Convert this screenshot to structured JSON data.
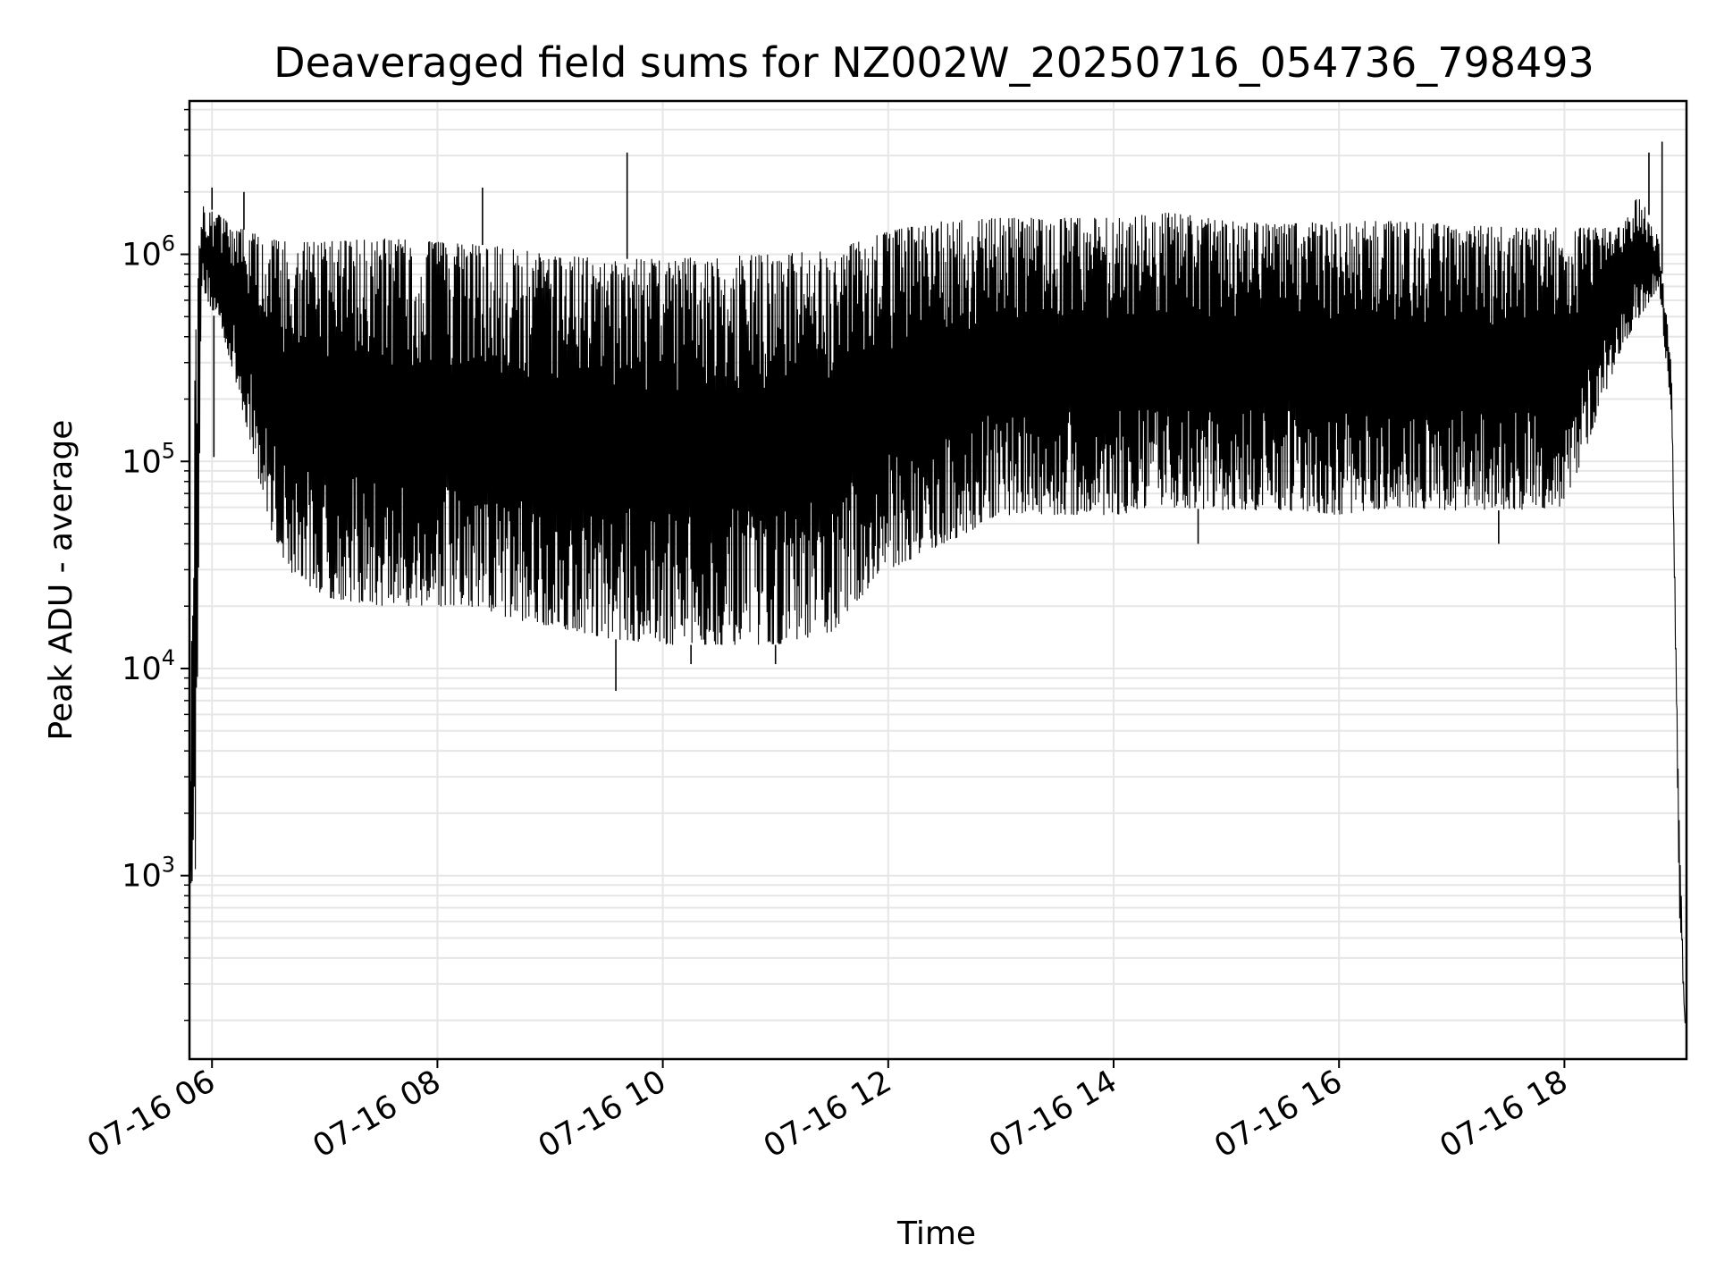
{
  "chart_data": {
    "type": "line",
    "title": "Deaveraged field sums for NZ002W_20250716_054736_798493",
    "xlabel": "Time",
    "ylabel": "Peak ADU - average",
    "y_scale": "log",
    "grid": true,
    "line_color": "#000000",
    "grid_color": "#e6e6e6",
    "xlim": [
      "2025-07-16 05:48",
      "2025-07-16 19:05"
    ],
    "ylim": [
      130,
      5500000
    ],
    "x_ticks": [
      {
        "t": "2025-07-16 06:00",
        "label": "07-16 06"
      },
      {
        "t": "2025-07-16 08:00",
        "label": "07-16 08"
      },
      {
        "t": "2025-07-16 10:00",
        "label": "07-16 10"
      },
      {
        "t": "2025-07-16 12:00",
        "label": "07-16 12"
      },
      {
        "t": "2025-07-16 14:00",
        "label": "07-16 14"
      },
      {
        "t": "2025-07-16 16:00",
        "label": "07-16 16"
      },
      {
        "t": "2025-07-16 18:00",
        "label": "07-16 18"
      }
    ],
    "y_ticks": [
      {
        "value": 1000,
        "base": "10",
        "exp": "3"
      },
      {
        "value": 10000,
        "base": "10",
        "exp": "4"
      },
      {
        "value": 100000,
        "base": "10",
        "exp": "5"
      },
      {
        "value": 1000000,
        "base": "10",
        "exp": "6"
      }
    ],
    "envelope": [
      {
        "t": "2025-07-16 05:48",
        "upper": 1700,
        "lower": 900
      },
      {
        "t": "2025-07-16 05:51",
        "upper": 400000,
        "lower": 1000
      },
      {
        "t": "2025-07-16 05:54",
        "upper": 1800000,
        "lower": 700000
      },
      {
        "t": "2025-07-16 06:06",
        "upper": 1500000,
        "lower": 400000
      },
      {
        "t": "2025-07-16 06:18",
        "upper": 1300000,
        "lower": 150000
      },
      {
        "t": "2025-07-16 06:30",
        "upper": 1200000,
        "lower": 50000
      },
      {
        "t": "2025-07-16 06:40",
        "upper": 1150000,
        "lower": 30000
      },
      {
        "t": "2025-07-16 07:00",
        "upper": 1150000,
        "lower": 22000
      },
      {
        "t": "2025-07-16 07:30",
        "upper": 1200000,
        "lower": 20000
      },
      {
        "t": "2025-07-16 08:00",
        "upper": 1150000,
        "lower": 20000
      },
      {
        "t": "2025-07-16 08:30",
        "upper": 1100000,
        "lower": 18000
      },
      {
        "t": "2025-07-16 09:00",
        "upper": 1000000,
        "lower": 16000
      },
      {
        "t": "2025-07-16 09:30",
        "upper": 950000,
        "lower": 14000
      },
      {
        "t": "2025-07-16 10:00",
        "upper": 950000,
        "lower": 13000
      },
      {
        "t": "2025-07-16 10:30",
        "upper": 980000,
        "lower": 13000
      },
      {
        "t": "2025-07-16 11:00",
        "upper": 1000000,
        "lower": 13000
      },
      {
        "t": "2025-07-16 11:30",
        "upper": 1050000,
        "lower": 15000
      },
      {
        "t": "2025-07-16 11:50",
        "upper": 1200000,
        "lower": 25000
      },
      {
        "t": "2025-07-16 12:00",
        "upper": 1300000,
        "lower": 30000
      },
      {
        "t": "2025-07-16 12:30",
        "upper": 1450000,
        "lower": 40000
      },
      {
        "t": "2025-07-16 13:00",
        "upper": 1500000,
        "lower": 55000
      },
      {
        "t": "2025-07-16 13:30",
        "upper": 1500000,
        "lower": 55000
      },
      {
        "t": "2025-07-16 14:00",
        "upper": 1500000,
        "lower": 55000
      },
      {
        "t": "2025-07-16 14:30",
        "upper": 1600000,
        "lower": 60000
      },
      {
        "t": "2025-07-16 15:00",
        "upper": 1450000,
        "lower": 58000
      },
      {
        "t": "2025-07-16 15:30",
        "upper": 1400000,
        "lower": 58000
      },
      {
        "t": "2025-07-16 16:00",
        "upper": 1450000,
        "lower": 55000
      },
      {
        "t": "2025-07-16 16:30",
        "upper": 1450000,
        "lower": 60000
      },
      {
        "t": "2025-07-16 17:00",
        "upper": 1400000,
        "lower": 58000
      },
      {
        "t": "2025-07-16 17:30",
        "upper": 1350000,
        "lower": 58000
      },
      {
        "t": "2025-07-16 18:00",
        "upper": 1350000,
        "lower": 60000
      },
      {
        "t": "2025-07-16 18:30",
        "upper": 1350000,
        "lower": 350000
      },
      {
        "t": "2025-07-16 18:40",
        "upper": 2000000,
        "lower": 500000
      },
      {
        "t": "2025-07-16 18:50",
        "upper": 1200000,
        "lower": 700000
      },
      {
        "t": "2025-07-16 18:57",
        "upper": 300000,
        "lower": 150000
      },
      {
        "t": "2025-07-16 19:01",
        "upper": 2000,
        "lower": 600
      },
      {
        "t": "2025-07-16 19:04",
        "upper": 220,
        "lower": 190
      }
    ],
    "spikes": [
      {
        "t": "2025-07-16 06:00",
        "value": 2100000
      },
      {
        "t": "2025-07-16 06:17",
        "value": 2000000
      },
      {
        "t": "2025-07-16 08:24",
        "value": 2100000
      },
      {
        "t": "2025-07-16 09:41",
        "value": 3100000
      },
      {
        "t": "2025-07-16 18:45",
        "value": 3100000
      },
      {
        "t": "2025-07-16 18:52",
        "value": 3500000
      }
    ],
    "dips": [
      {
        "t": "2025-07-16 06:01",
        "value": 105000
      },
      {
        "t": "2025-07-16 09:35",
        "value": 7800
      },
      {
        "t": "2025-07-16 10:15",
        "value": 10500
      },
      {
        "t": "2025-07-16 11:00",
        "value": 10500
      },
      {
        "t": "2025-07-16 14:45",
        "value": 40000
      },
      {
        "t": "2025-07-16 17:25",
        "value": 40000
      }
    ]
  }
}
